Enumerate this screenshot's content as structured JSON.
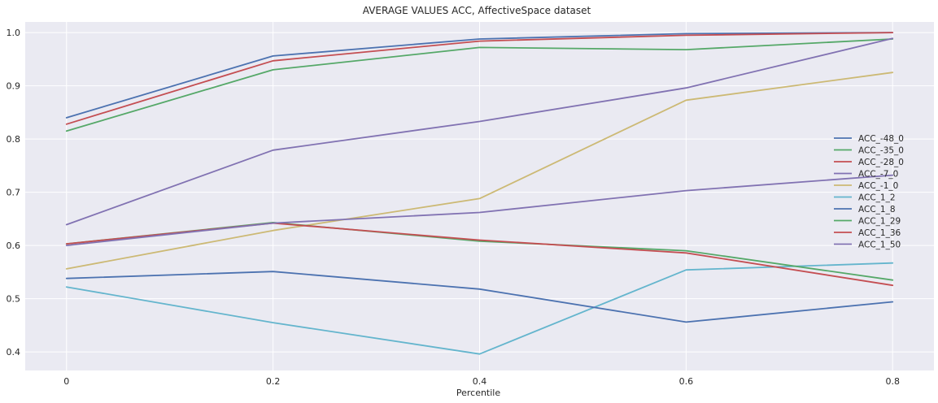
{
  "chart_data": {
    "type": "line",
    "title": "AVERAGE VALUES ACC, AffectiveSpace dataset",
    "xlabel": "Percentile",
    "ylabel": "",
    "x": [
      0,
      0.2,
      0.4,
      0.6,
      0.8
    ],
    "x_tick_labels": [
      "0",
      "0.2",
      "0.4",
      "0.6",
      "0.8"
    ],
    "xlim": [
      -0.04,
      0.84
    ],
    "ylim": [
      0.365,
      1.02
    ],
    "y_ticks": [
      0.4,
      0.5,
      0.6,
      0.7,
      0.8,
      0.9,
      1.0
    ],
    "y_tick_labels": [
      "0.4",
      "0.5",
      "0.6",
      "0.7",
      "0.8",
      "0.9",
      "1.0"
    ],
    "grid": true,
    "legend_position": "right",
    "background": "#EAEAF2",
    "series": [
      {
        "name": "ACC_-48_0",
        "color": "#4C72B0",
        "values": [
          0.84,
          0.956,
          0.988,
          0.998,
          1.0
        ]
      },
      {
        "name": "ACC_-35_0",
        "color": "#55A868",
        "values": [
          0.815,
          0.93,
          0.972,
          0.968,
          0.988
        ]
      },
      {
        "name": "ACC_-28_0",
        "color": "#C44E52",
        "values": [
          0.828,
          0.947,
          0.984,
          0.995,
          1.0
        ]
      },
      {
        "name": "ACC_-7_0",
        "color": "#8172B2",
        "values": [
          0.639,
          0.779,
          0.833,
          0.896,
          0.989
        ]
      },
      {
        "name": "ACC_-1_0",
        "color": "#CCB974",
        "values": [
          0.556,
          0.628,
          0.688,
          0.873,
          0.925
        ]
      },
      {
        "name": "ACC_1_2",
        "color": "#64B5CD",
        "values": [
          0.522,
          0.455,
          0.396,
          0.554,
          0.567
        ]
      },
      {
        "name": "ACC_1_8",
        "color": "#4C72B0",
        "values": [
          0.538,
          0.551,
          0.518,
          0.456,
          0.494
        ]
      },
      {
        "name": "ACC_1_29",
        "color": "#55A868",
        "values": [
          0.603,
          0.643,
          0.608,
          0.59,
          0.535
        ]
      },
      {
        "name": "ACC_1_36",
        "color": "#C44E52",
        "values": [
          0.603,
          0.642,
          0.61,
          0.586,
          0.525
        ]
      },
      {
        "name": "ACC_1_50",
        "color": "#8172B2",
        "values": [
          0.6,
          0.642,
          0.662,
          0.703,
          0.732
        ]
      }
    ]
  }
}
